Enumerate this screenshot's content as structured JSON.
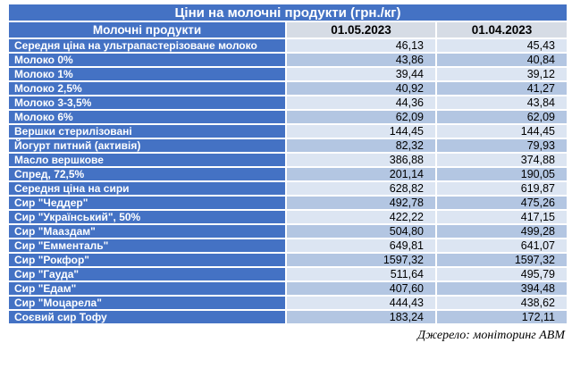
{
  "title": "Ціни на молочні продукти (грн./кг)",
  "source": "Джерело: моніторинг АВМ",
  "columns": [
    "Молочні продукти",
    "01.05.2023",
    "01.04.2023"
  ],
  "rows": [
    [
      "Середня ціна на ультрапастерізоване молоко",
      "46,13",
      "45,43"
    ],
    [
      "Молоко 0%",
      "43,86",
      "40,84"
    ],
    [
      "Молоко 1%",
      "39,44",
      "39,12"
    ],
    [
      "Молоко 2,5%",
      "40,92",
      "41,27"
    ],
    [
      "Молоко 3-3,5%",
      "44,36",
      "43,84"
    ],
    [
      "Молоко 6%",
      "62,09",
      "62,09"
    ],
    [
      "Вершки стерилізовані",
      "144,45",
      "144,45"
    ],
    [
      "Йогурт питний (активія)",
      "82,32",
      "79,93"
    ],
    [
      "Масло вершкове",
      "386,88",
      "374,88"
    ],
    [
      "Спред, 72,5%",
      "201,14",
      "190,05"
    ],
    [
      "Середня ціна на сири",
      "628,82",
      "619,87"
    ],
    [
      "Сир \"Чеддер\"",
      "492,78",
      "475,26"
    ],
    [
      "Сир \"Український\",  50%",
      "422,22",
      "417,15"
    ],
    [
      "Сир \"Мааздам\"",
      "504,80",
      "499,28"
    ],
    [
      "Сир \"Емменталь\"",
      "649,81",
      "641,07"
    ],
    [
      "Сир \"Рокфор\"",
      "1597,32",
      "1597,32"
    ],
    [
      "Сир \"Гауда\"",
      "511,64",
      "495,79"
    ],
    [
      "Сир \"Едам\"",
      "407,60",
      "394,48"
    ],
    [
      "Сир \"Моцарела\"",
      "444,43",
      "438,62"
    ],
    [
      "Соєвий сир Тофу",
      "183,24",
      "172,11"
    ]
  ],
  "colors": {
    "accent_blue": "#4472C4",
    "row_light": "#DCE5F2",
    "row_shaded": "#B3C6E2",
    "date_header_bg": "#D6DCE5",
    "title_text": "#FFFFFF",
    "value_text": "#000000"
  }
}
